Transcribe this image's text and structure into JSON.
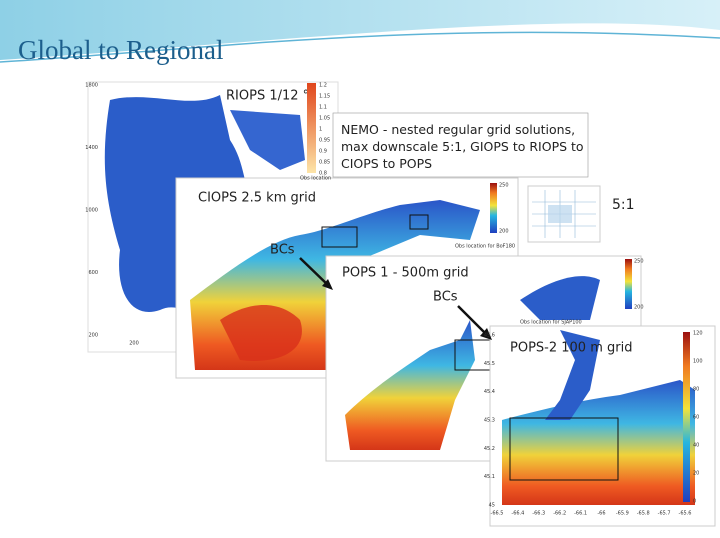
{
  "header": {
    "title": "Global to Regional"
  },
  "note": {
    "lines": [
      "NEMO - nested regular grid solutions,",
      "max downscale 5:1, GIOPS to RIOPS to",
      "CIOPS to POPS"
    ]
  },
  "ratio_inset": {
    "label": "5:1"
  },
  "arrows": [
    {
      "label": "BCs"
    },
    {
      "label": "BCs"
    }
  ],
  "panels": [
    {
      "label": "RIOPS 1/12 °",
      "caption": "Obs location",
      "yticks": [
        "1800",
        "1400",
        "1000",
        "600",
        "200"
      ],
      "xticks": [
        "200"
      ],
      "colorbar": [
        "1.2",
        "1.15",
        "1.1",
        "1.05",
        "1",
        "0.95",
        "0.9",
        "0.85",
        "0.8"
      ]
    },
    {
      "label": "CIOPS 2.5 km grid",
      "caption": "Obs location for BoF180",
      "colorbar": [
        "250",
        "200"
      ]
    },
    {
      "label": "POPS 1 - 500m grid",
      "caption": "Obs location for SJAP100",
      "colorbar": [
        "250",
        "200"
      ]
    },
    {
      "label": "POPS-2 100 m grid",
      "yticks": [
        "45.6",
        "45.5",
        "45.4",
        "45.3",
        "45.2",
        "45.1",
        "45"
      ],
      "xticks": [
        "-66.5",
        "-66.4",
        "-66.3",
        "-66.2",
        "-66.1",
        "-66",
        "-65.9",
        "-65.8",
        "-65.7",
        "-65.6"
      ],
      "colorbar": [
        "120",
        "100",
        "80",
        "60",
        "40",
        "20",
        "0"
      ]
    }
  ]
}
